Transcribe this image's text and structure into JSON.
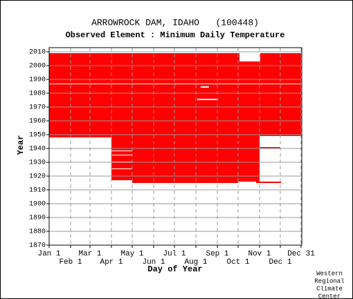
{
  "chart_data": {
    "type": "range",
    "title": "ARROWROCK DAM, IDAHO   (100448)",
    "subtitle": "Observed Element : Minimum Daily Temperature",
    "x_label": "Day of Year",
    "y_label": "Year",
    "credit": [
      "Western",
      "Regional",
      "Climate",
      "Center"
    ],
    "color": "#ff0000",
    "gap_color": "#ffffff",
    "xlim": [
      1,
      366
    ],
    "ylim": [
      1870,
      2013
    ],
    "xticks": [
      {
        "value": 1,
        "label": "Jan 1"
      },
      {
        "value": 32,
        "label": "Feb 1"
      },
      {
        "value": 60,
        "label": "Mar 1"
      },
      {
        "value": 91,
        "label": "Apr 1"
      },
      {
        "value": 121,
        "label": "May 1"
      },
      {
        "value": 152,
        "label": "Jun 1"
      },
      {
        "value": 182,
        "label": "Jul 1"
      },
      {
        "value": 213,
        "label": "Aug 1"
      },
      {
        "value": 244,
        "label": "Sep 1"
      },
      {
        "value": 274,
        "label": "Oct 1"
      },
      {
        "value": 305,
        "label": "Nov 1"
      },
      {
        "value": 335,
        "label": "Dec 1"
      },
      {
        "value": 365,
        "label": "Dec 31"
      }
    ],
    "yticks": [
      1870,
      1880,
      1890,
      1900,
      1910,
      1920,
      1930,
      1940,
      1950,
      1960,
      1970,
      1980,
      1990,
      2000,
      2010
    ],
    "grid": true,
    "blocks": [
      {
        "x0": 1,
        "x1": 365,
        "y0": 1948,
        "y1": 2009
      },
      {
        "x0": 91,
        "x1": 121,
        "y0": 1917,
        "y1": 1948
      },
      {
        "x0": 121,
        "x1": 274,
        "y0": 1915,
        "y1": 1948
      },
      {
        "x0": 274,
        "x1": 305,
        "y0": 1916,
        "y1": 1948
      },
      {
        "x0": 305,
        "x1": 335,
        "y0": 1940,
        "y1": 1941
      },
      {
        "x0": 300,
        "x1": 336,
        "y0": 1915,
        "y1": 1916
      }
    ],
    "gaps": [
      {
        "x0": 276,
        "x1": 306,
        "y0": 2003,
        "y1": 2009
      },
      {
        "x0": 215,
        "x1": 245,
        "y0": 1975,
        "y1": 1976
      },
      {
        "x0": 220,
        "x1": 232,
        "y0": 1984,
        "y1": 1985
      },
      {
        "x0": 1,
        "x1": 365,
        "y0": 1986.5,
        "y1": 1987
      },
      {
        "x0": 91,
        "x1": 121,
        "y0": 1938,
        "y1": 1938.5
      },
      {
        "x0": 91,
        "x1": 121,
        "y0": 1935,
        "y1": 1935.5
      },
      {
        "x0": 91,
        "x1": 121,
        "y0": 1930,
        "y1": 1930.5
      },
      {
        "x0": 91,
        "x1": 121,
        "y0": 1925,
        "y1": 1925.5
      },
      {
        "x0": 305,
        "x1": 365,
        "y0": 1948,
        "y1": 1949
      }
    ]
  }
}
